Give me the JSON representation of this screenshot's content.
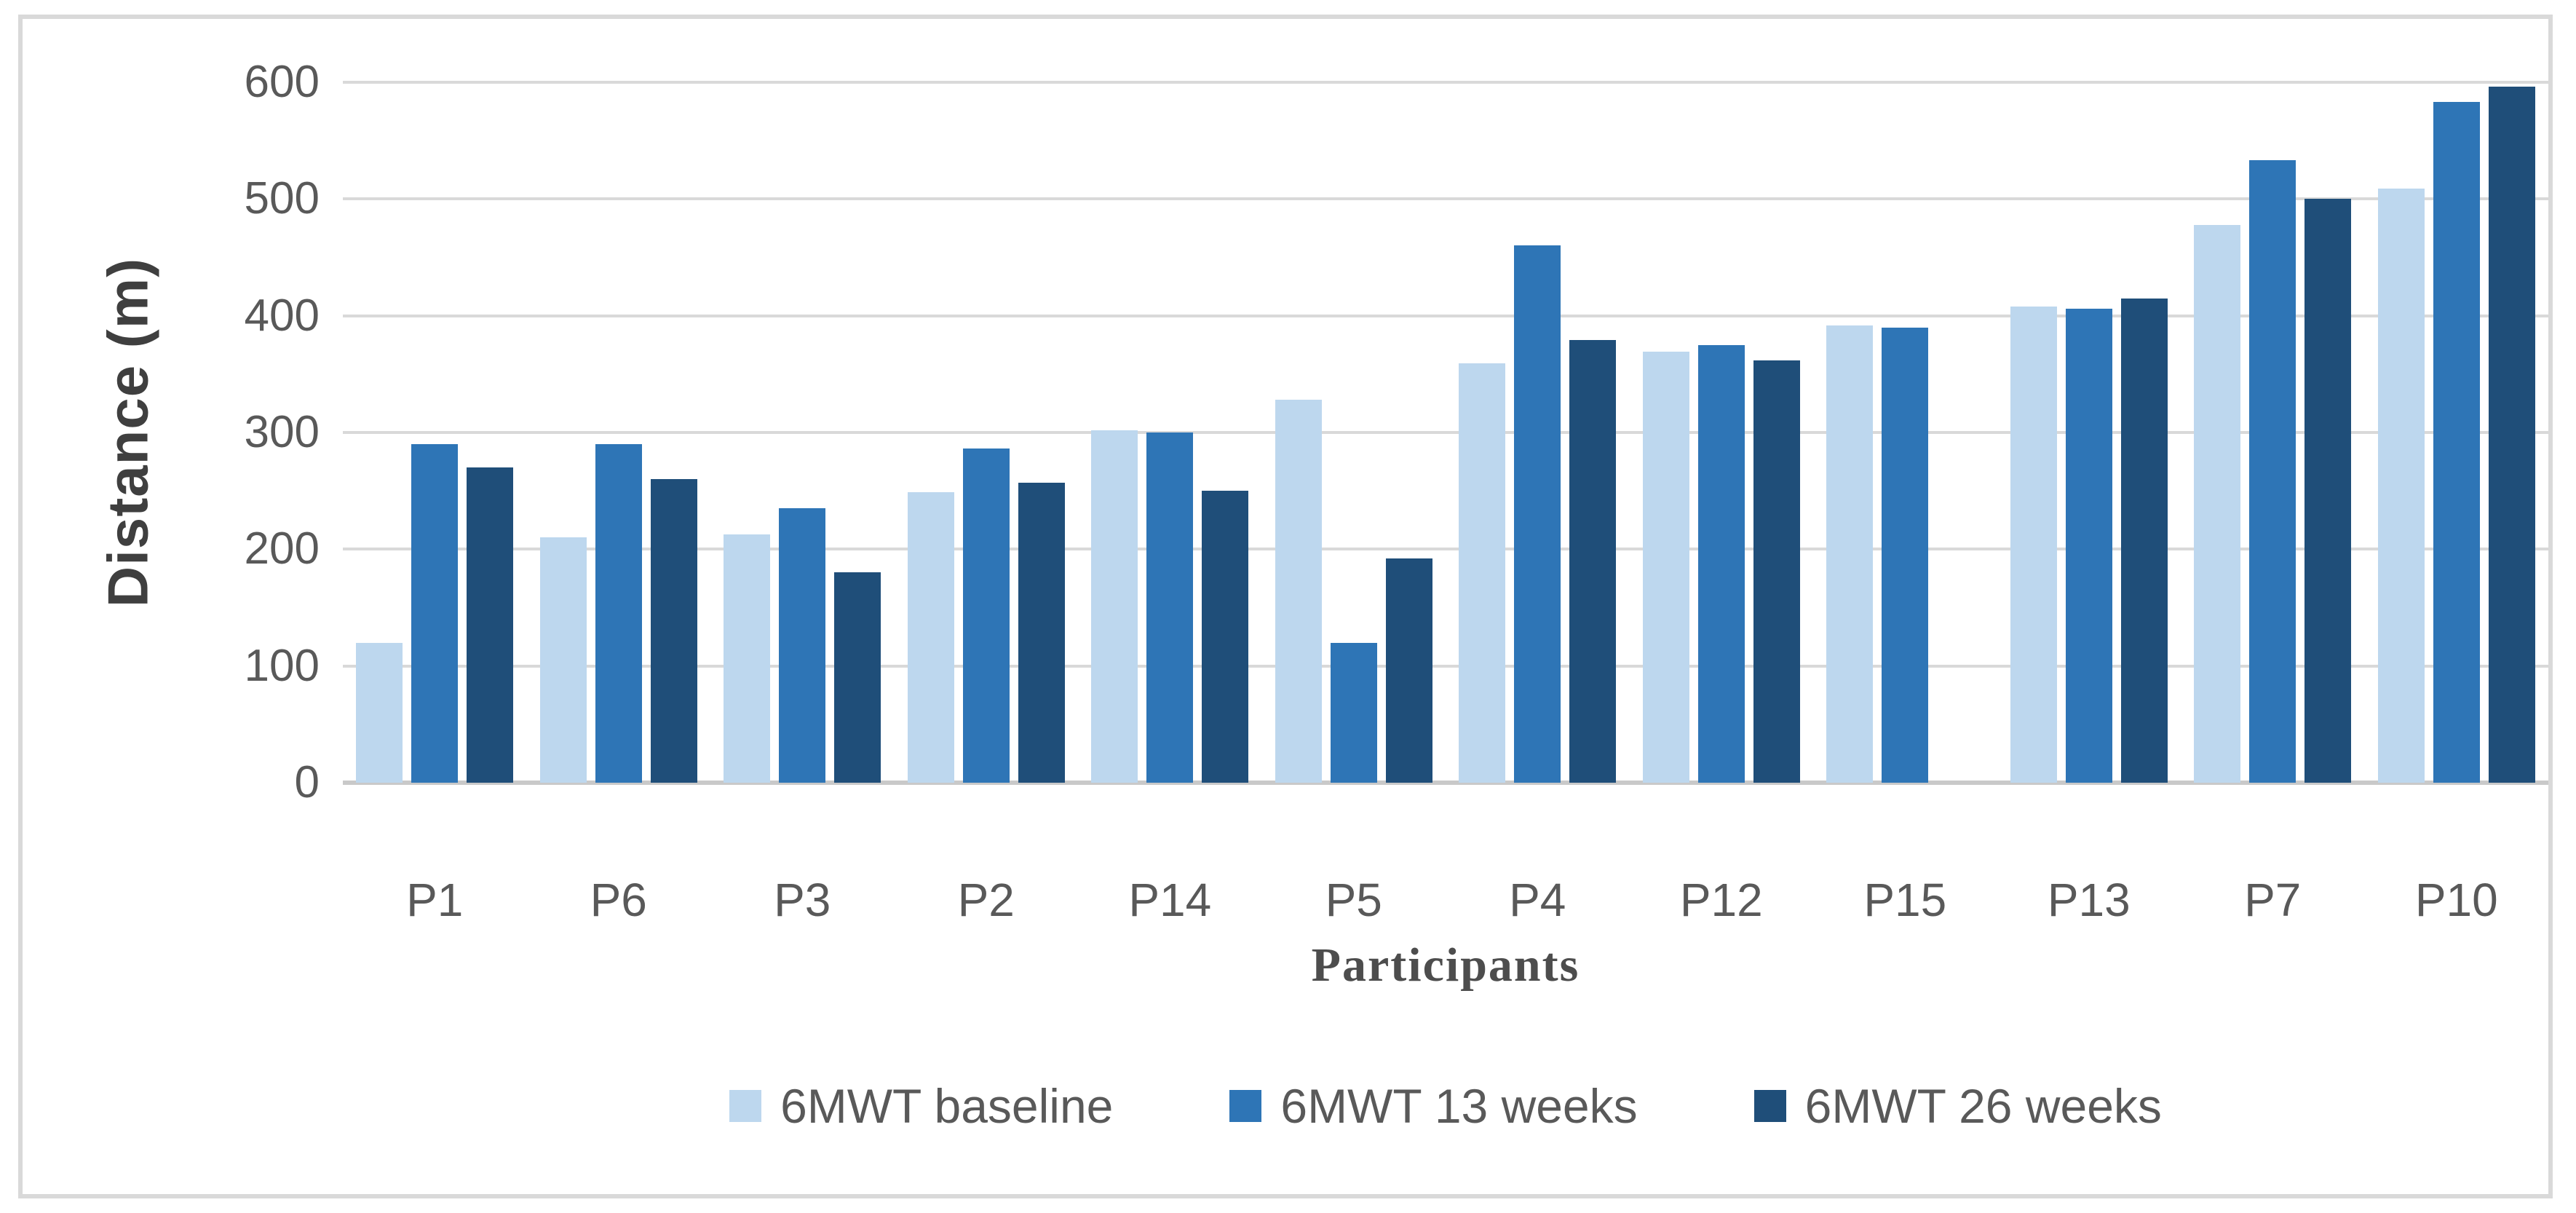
{
  "chart_data": {
    "type": "bar",
    "title": "",
    "xlabel": "Participants",
    "ylabel": "Distance (m)",
    "ylim": [
      0,
      600
    ],
    "yticks": [
      0,
      100,
      200,
      300,
      400,
      500,
      600
    ],
    "grid": true,
    "legend_position": "bottom",
    "categories": [
      "P1",
      "P6",
      "P3",
      "P2",
      "P14",
      "P5",
      "P4",
      "P12",
      "P15",
      "P13",
      "P7",
      "P10"
    ],
    "series": [
      {
        "name": "6MWT baseline",
        "color": "#BDD7EE",
        "values": [
          120,
          210,
          213,
          249,
          302,
          328,
          359,
          369,
          392,
          408,
          478,
          509
        ]
      },
      {
        "name": "6MWT 13 weeks",
        "color": "#2E75B6",
        "values": [
          290,
          290,
          235,
          286,
          300,
          120,
          460,
          375,
          390,
          406,
          533,
          583
        ]
      },
      {
        "name": "6MWT 26 weeks",
        "color": "#1F4E79",
        "values": [
          270,
          260,
          180,
          257,
          250,
          192,
          379,
          362,
          null,
          415,
          500,
          596
        ]
      }
    ]
  },
  "colors": {
    "gridline": "#D9D9D9",
    "axis_line": "#C9C9C9",
    "tick_text": "#595959",
    "axis_title_text": "#3F3F3F",
    "frame_border": "#D9D9D9",
    "background": "#FFFFFF"
  }
}
